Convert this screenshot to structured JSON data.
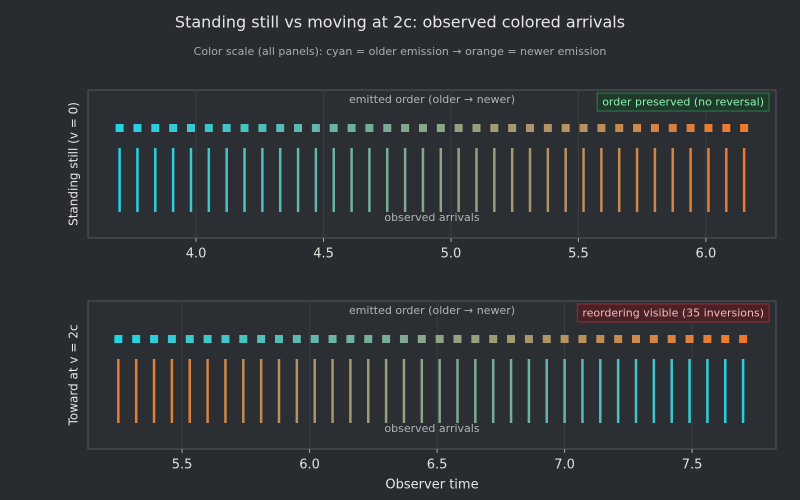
{
  "header": {
    "title": "Standing still vs moving at 2c: observed colored arrivals",
    "subtitle": "Color scale (all panels): cyan = older emission → orange = newer emission"
  },
  "chart_data": [
    {
      "type": "event",
      "ylabel": "Standing still (v = 0)",
      "emitted_label": "emitted order (older → newer)",
      "arrivals_label": "observed arrivals",
      "badge": "order preserved (no reversal)",
      "badge_tone": "good",
      "color_scale": [
        "#22d3e6",
        "#f0782a"
      ],
      "xlim": [
        3.576,
        6.275
      ],
      "xticks": [
        {
          "value": 4,
          "label": "4.0"
        },
        {
          "value": 4.5,
          "label": "4.5"
        },
        {
          "value": 5,
          "label": "5.0"
        },
        {
          "value": 5.5,
          "label": "5.5"
        },
        {
          "value": 6,
          "label": "6.0"
        }
      ],
      "grid": true,
      "values": [
        3.7,
        3.77,
        3.84,
        3.91,
        3.98,
        4.05,
        4.12,
        4.19,
        4.26,
        4.33,
        4.4,
        4.47,
        4.54,
        4.61,
        4.68,
        4.75,
        4.82,
        4.89,
        4.96,
        5.03,
        5.1,
        5.17,
        5.24,
        5.31,
        5.38,
        5.45,
        5.52,
        5.59,
        5.66,
        5.73,
        5.8,
        5.87,
        5.94,
        6.01,
        6.08,
        6.15
      ]
    },
    {
      "type": "event",
      "ylabel": "Toward at v = 2c",
      "xlabel": "Observer time",
      "emitted_label": "emitted order (older → newer)",
      "arrivals_label": "observed arrivals",
      "badge": "reordering visible (35 inversions)",
      "badge_tone": "bad",
      "color_scale": [
        "#22d3e6",
        "#f0782a"
      ],
      "xlim": [
        5.131,
        7.829
      ],
      "xticks": [
        {
          "value": 5.5,
          "label": "5.5"
        },
        {
          "value": 6,
          "label": "6.0"
        },
        {
          "value": 6.5,
          "label": "6.5"
        },
        {
          "value": 7,
          "label": "7.0"
        },
        {
          "value": 7.5,
          "label": "7.5"
        }
      ],
      "grid": true,
      "values": [
        7.7,
        7.63,
        7.56,
        7.49,
        7.42,
        7.35,
        7.28,
        7.21,
        7.14,
        7.07,
        7.0,
        6.93,
        6.86,
        6.79,
        6.72,
        6.65,
        6.58,
        6.51,
        6.44,
        6.37,
        6.3,
        6.23,
        6.16,
        6.09,
        6.02,
        5.95,
        5.88,
        5.81,
        5.74,
        5.67,
        5.6,
        5.53,
        5.46,
        5.39,
        5.32,
        5.25
      ]
    }
  ]
}
